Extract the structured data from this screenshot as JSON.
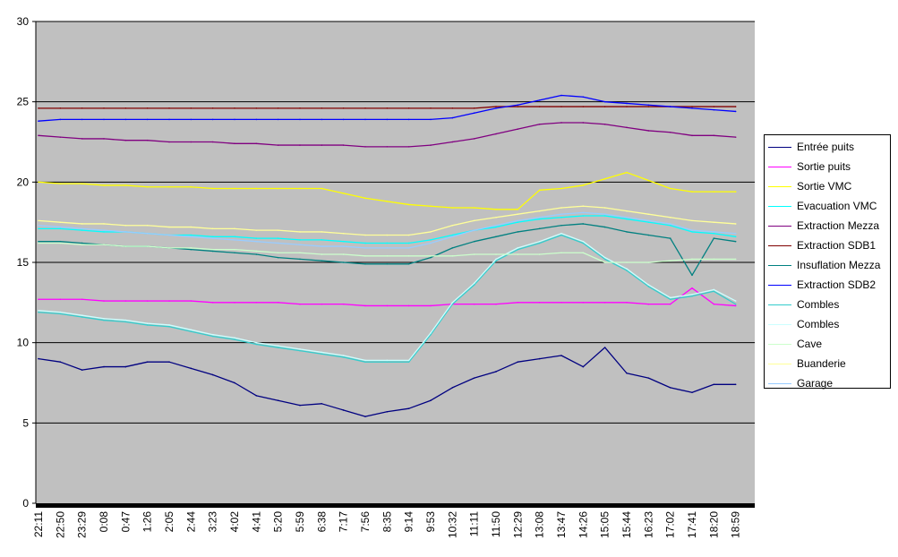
{
  "chart_data": {
    "type": "line",
    "title": "",
    "xlabel": "",
    "ylabel": "",
    "ylim": [
      0,
      30
    ],
    "yticks": [
      0,
      5,
      10,
      15,
      20,
      25,
      30
    ],
    "grid": true,
    "legend_position": "right",
    "x": [
      "22:11",
      "22:50",
      "23:29",
      "0:08",
      "0:47",
      "1:26",
      "2:05",
      "2:44",
      "3:23",
      "4:02",
      "4:41",
      "5:20",
      "5:59",
      "6:38",
      "7:17",
      "7:56",
      "8:35",
      "9:14",
      "9:53",
      "10:32",
      "11:11",
      "11:50",
      "12:29",
      "13:08",
      "13:47",
      "14:26",
      "15:05",
      "15:44",
      "16:23",
      "17:02",
      "17:41",
      "18:20",
      "18:59"
    ],
    "series": [
      {
        "name": "Entrée puits",
        "color": "#000080",
        "values": [
          9.0,
          8.8,
          8.3,
          8.5,
          8.5,
          8.8,
          8.8,
          8.4,
          8.0,
          7.5,
          6.7,
          6.4,
          6.1,
          6.2,
          5.8,
          5.4,
          5.7,
          5.9,
          6.4,
          7.2,
          7.8,
          8.2,
          8.8,
          9.0,
          9.2,
          8.5,
          9.7,
          8.1,
          7.8,
          7.2,
          6.9,
          7.4,
          7.4
        ]
      },
      {
        "name": "Sortie puits",
        "color": "#ff00ff",
        "values": [
          12.7,
          12.7,
          12.7,
          12.6,
          12.6,
          12.6,
          12.6,
          12.6,
          12.5,
          12.5,
          12.5,
          12.5,
          12.4,
          12.4,
          12.4,
          12.3,
          12.3,
          12.3,
          12.3,
          12.4,
          12.4,
          12.4,
          12.5,
          12.5,
          12.5,
          12.5,
          12.5,
          12.5,
          12.4,
          12.4,
          13.4,
          12.4,
          12.3
        ]
      },
      {
        "name": "Sortie VMC",
        "color": "#ffff00",
        "values": [
          20.0,
          19.9,
          19.9,
          19.8,
          19.8,
          19.7,
          19.7,
          19.7,
          19.6,
          19.6,
          19.6,
          19.6,
          19.6,
          19.6,
          19.3,
          19.0,
          18.8,
          18.6,
          18.5,
          18.4,
          18.4,
          18.3,
          18.3,
          19.5,
          19.6,
          19.8,
          20.2,
          20.6,
          20.1,
          19.6,
          19.4,
          19.4,
          19.4
        ]
      },
      {
        "name": "Evacuation VMC",
        "color": "#00ffff",
        "values": [
          17.1,
          17.1,
          17.0,
          16.9,
          16.9,
          16.8,
          16.7,
          16.7,
          16.6,
          16.6,
          16.5,
          16.5,
          16.4,
          16.4,
          16.3,
          16.2,
          16.2,
          16.2,
          16.4,
          16.7,
          17.0,
          17.2,
          17.5,
          17.7,
          17.8,
          17.9,
          17.9,
          17.7,
          17.5,
          17.3,
          16.9,
          16.8,
          16.6
        ]
      },
      {
        "name": "Extraction Mezza",
        "color": "#800080",
        "values": [
          22.9,
          22.8,
          22.7,
          22.7,
          22.6,
          22.6,
          22.5,
          22.5,
          22.5,
          22.4,
          22.4,
          22.3,
          22.3,
          22.3,
          22.3,
          22.2,
          22.2,
          22.2,
          22.3,
          22.5,
          22.7,
          23.0,
          23.3,
          23.6,
          23.7,
          23.7,
          23.6,
          23.4,
          23.2,
          23.1,
          22.9,
          22.9,
          22.8
        ]
      },
      {
        "name": "Extraction SDB1",
        "color": "#800000",
        "values": [
          24.6,
          24.6,
          24.6,
          24.6,
          24.6,
          24.6,
          24.6,
          24.6,
          24.6,
          24.6,
          24.6,
          24.6,
          24.6,
          24.6,
          24.6,
          24.6,
          24.6,
          24.6,
          24.6,
          24.6,
          24.6,
          24.7,
          24.7,
          24.7,
          24.7,
          24.7,
          24.7,
          24.7,
          24.7,
          24.7,
          24.7,
          24.7,
          24.7
        ]
      },
      {
        "name": "Insuflation Mezza",
        "color": "#008080",
        "values": [
          16.3,
          16.3,
          16.2,
          16.1,
          16.0,
          16.0,
          15.9,
          15.8,
          15.7,
          15.6,
          15.5,
          15.3,
          15.2,
          15.1,
          15.0,
          14.9,
          14.9,
          14.9,
          15.3,
          15.9,
          16.3,
          16.6,
          16.9,
          17.1,
          17.3,
          17.4,
          17.2,
          16.9,
          16.7,
          16.5,
          14.2,
          16.5,
          16.3
        ]
      },
      {
        "name": "Extraction SDB2",
        "color": "#0000ff",
        "values": [
          23.8,
          23.9,
          23.9,
          23.9,
          23.9,
          23.9,
          23.9,
          23.9,
          23.9,
          23.9,
          23.9,
          23.9,
          23.9,
          23.9,
          23.9,
          23.9,
          23.9,
          23.9,
          23.9,
          24.0,
          24.3,
          24.6,
          24.8,
          25.1,
          25.4,
          25.3,
          25.0,
          24.9,
          24.8,
          24.7,
          24.6,
          24.5,
          24.4
        ]
      },
      {
        "name": "Combles",
        "color": "#33cccc",
        "values": [
          11.9,
          11.8,
          11.6,
          11.4,
          11.3,
          11.1,
          11.0,
          10.7,
          10.4,
          10.2,
          9.9,
          9.7,
          9.5,
          9.3,
          9.1,
          8.8,
          8.8,
          8.8,
          10.5,
          12.4,
          13.6,
          15.1,
          15.8,
          16.2,
          16.7,
          16.2,
          15.2,
          14.5,
          13.5,
          12.7,
          12.9,
          13.2,
          12.4
        ]
      },
      {
        "name": "Combles",
        "color": "#ccffff",
        "values": [
          12.0,
          11.9,
          11.7,
          11.5,
          11.4,
          11.2,
          11.1,
          10.8,
          10.5,
          10.3,
          10.0,
          9.8,
          9.6,
          9.4,
          9.2,
          8.9,
          8.9,
          8.9,
          10.6,
          12.5,
          13.7,
          15.2,
          15.9,
          16.3,
          16.8,
          16.3,
          15.3,
          14.6,
          13.6,
          12.8,
          13.0,
          13.3,
          12.6
        ]
      },
      {
        "name": "Cave",
        "color": "#ccffcc",
        "values": [
          16.2,
          16.2,
          16.1,
          16.1,
          16.0,
          16.0,
          15.9,
          15.9,
          15.8,
          15.8,
          15.7,
          15.6,
          15.6,
          15.5,
          15.5,
          15.4,
          15.4,
          15.4,
          15.4,
          15.4,
          15.5,
          15.5,
          15.5,
          15.5,
          15.6,
          15.6,
          15.0,
          15.0,
          15.0,
          15.1,
          15.2,
          15.2,
          15.2
        ]
      },
      {
        "name": "Buanderie",
        "color": "#ffff99",
        "values": [
          17.6,
          17.5,
          17.4,
          17.4,
          17.3,
          17.3,
          17.2,
          17.2,
          17.1,
          17.1,
          17.0,
          17.0,
          16.9,
          16.9,
          16.8,
          16.7,
          16.7,
          16.7,
          16.9,
          17.3,
          17.6,
          17.8,
          18.0,
          18.2,
          18.4,
          18.5,
          18.4,
          18.2,
          18.0,
          17.8,
          17.6,
          17.5,
          17.4
        ]
      },
      {
        "name": "Garage",
        "color": "#99ccff",
        "values": [
          17.3,
          17.2,
          17.1,
          17.0,
          16.9,
          16.8,
          16.7,
          16.6,
          16.5,
          16.4,
          16.3,
          16.2,
          16.1,
          16.0,
          16.0,
          15.9,
          15.9,
          15.9,
          16.2,
          16.6,
          17.0,
          17.3,
          17.6,
          17.8,
          18.0,
          18.1,
          18.0,
          17.8,
          17.6,
          17.4,
          17.0,
          16.9,
          16.8
        ]
      }
    ]
  }
}
